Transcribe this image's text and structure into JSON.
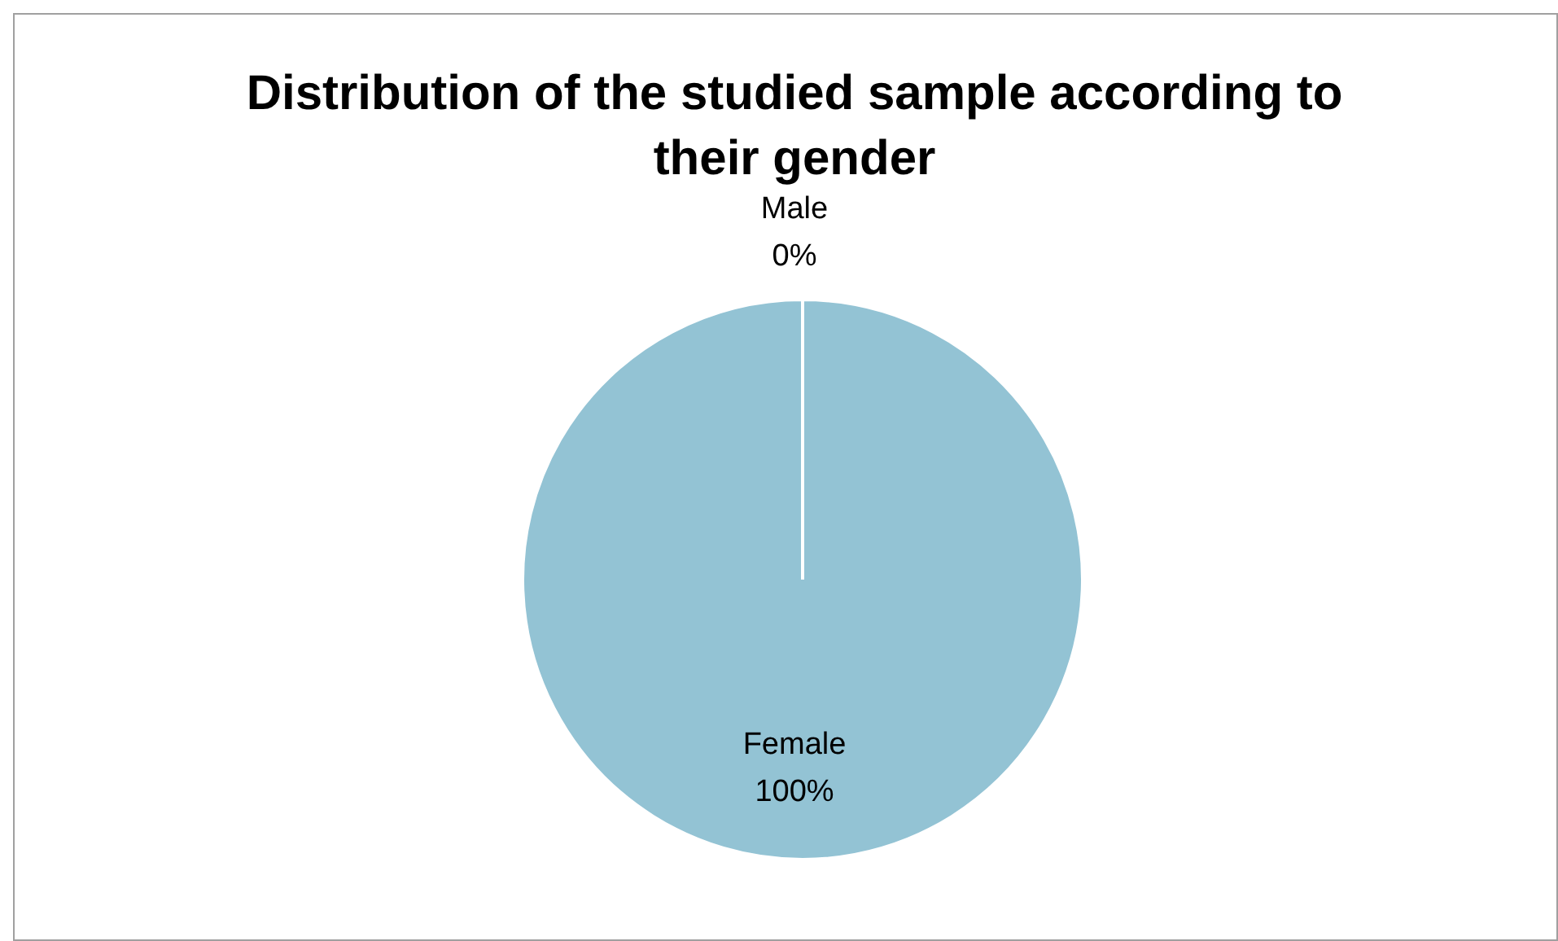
{
  "chart_data": {
    "type": "pie",
    "title": "Distribution of the studied sample according to their gender",
    "categories": [
      "Male",
      "Female"
    ],
    "values": [
      0,
      100
    ],
    "value_labels": [
      "0%",
      "100%"
    ],
    "colors": [
      "#4f81bd",
      "#93c3d4"
    ],
    "legend": false
  }
}
